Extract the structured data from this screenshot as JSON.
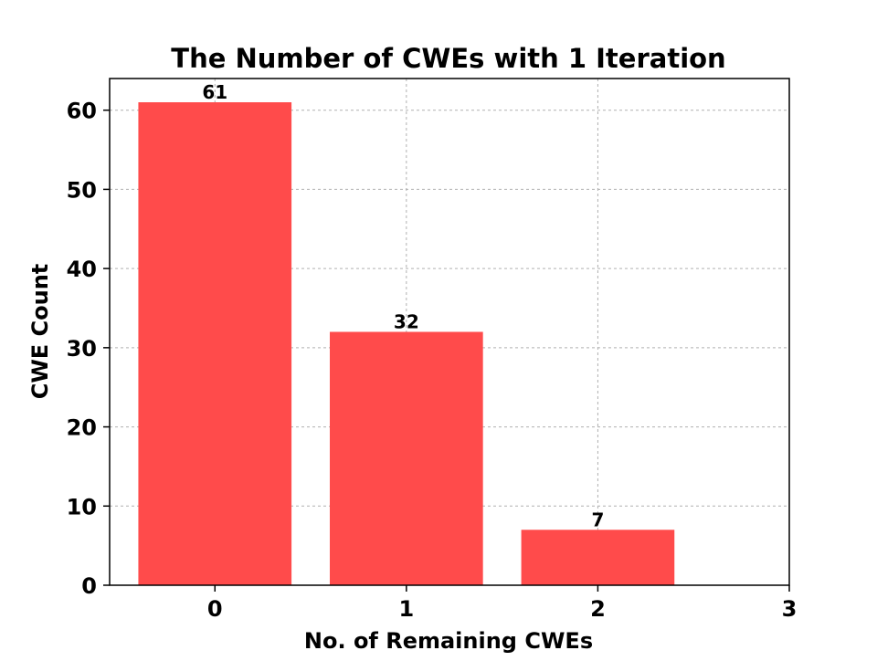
{
  "chart_data": {
    "type": "bar",
    "title": "The Number of CWEs with 1 Iteration",
    "xlabel": "No. of Remaining CWEs",
    "ylabel": "CWE Count",
    "x": [
      0,
      1,
      2
    ],
    "values": [
      61,
      32,
      7
    ],
    "data_labels": [
      "61",
      "32",
      "7"
    ],
    "xticks": [
      0,
      1,
      2,
      3
    ],
    "xtick_labels": [
      "0",
      "1",
      "2",
      "3"
    ],
    "yticks": [
      0,
      10,
      20,
      30,
      40,
      50,
      60
    ],
    "ytick_labels": [
      "0",
      "10",
      "20",
      "30",
      "40",
      "50",
      "60"
    ],
    "xlim": [
      -0.55,
      3.0
    ],
    "ylim": [
      0,
      64
    ],
    "bar_width": 0.8,
    "grid": true,
    "bar_color": "#ff4b4b"
  }
}
